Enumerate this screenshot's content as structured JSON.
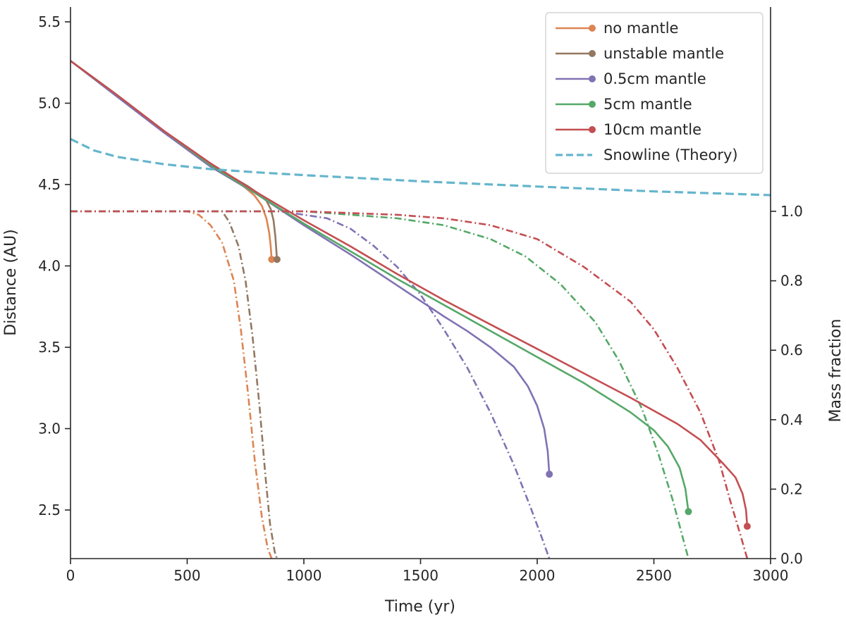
{
  "chart_data": {
    "type": "line",
    "xlabel": "Time (yr)",
    "ylabel": "Distance (AU)",
    "y2label": "Mass fraction",
    "xlim": [
      0,
      3000
    ],
    "ylim": [
      2.2,
      5.6
    ],
    "y2lim": [
      0.0,
      1.0
    ],
    "x_ticks": [
      "0",
      "500",
      "1000",
      "1500",
      "2000",
      "2500",
      "3000"
    ],
    "y_ticks": [
      "2.5",
      "3.0",
      "3.5",
      "4.0",
      "4.5",
      "5.0",
      "5.5"
    ],
    "y2_ticks": [
      "0.0",
      "0.2",
      "0.4",
      "0.6",
      "0.8",
      "1.0"
    ],
    "grid": false,
    "legend_position": "top-right",
    "series": [
      {
        "name": "no mantle",
        "color": "#dd8452",
        "distance": [
          [
            0,
            5.26
          ],
          [
            200,
            5.05
          ],
          [
            400,
            4.83
          ],
          [
            550,
            4.67
          ],
          [
            650,
            4.57
          ],
          [
            700,
            4.53
          ],
          [
            750,
            4.48
          ],
          [
            790,
            4.43
          ],
          [
            820,
            4.37
          ],
          [
            840,
            4.29
          ],
          [
            852,
            4.2
          ],
          [
            858,
            4.12
          ],
          [
            862,
            4.04
          ]
        ],
        "mass_fraction": [
          [
            0,
            1.0
          ],
          [
            500,
            1.0
          ],
          [
            550,
            0.99
          ],
          [
            600,
            0.96
          ],
          [
            650,
            0.91
          ],
          [
            700,
            0.8
          ],
          [
            730,
            0.66
          ],
          [
            760,
            0.48
          ],
          [
            790,
            0.28
          ],
          [
            820,
            0.12
          ],
          [
            845,
            0.03
          ],
          [
            862,
            0.0
          ]
        ]
      },
      {
        "name": "unstable mantle",
        "color": "#937860",
        "distance": [
          [
            0,
            5.26
          ],
          [
            200,
            5.05
          ],
          [
            400,
            4.83
          ],
          [
            600,
            4.63
          ],
          [
            700,
            4.54
          ],
          [
            760,
            4.49
          ],
          [
            810,
            4.44
          ],
          [
            840,
            4.4
          ],
          [
            858,
            4.35
          ],
          [
            870,
            4.28
          ],
          [
            878,
            4.18
          ],
          [
            882,
            4.1
          ],
          [
            885,
            4.04
          ]
        ],
        "mass_fraction": [
          [
            0,
            1.0
          ],
          [
            650,
            1.0
          ],
          [
            680,
            0.97
          ],
          [
            720,
            0.9
          ],
          [
            750,
            0.8
          ],
          [
            780,
            0.64
          ],
          [
            810,
            0.44
          ],
          [
            835,
            0.24
          ],
          [
            855,
            0.1
          ],
          [
            875,
            0.02
          ],
          [
            885,
            0.0
          ]
        ]
      },
      {
        "name": "0.5cm mantle",
        "color": "#8172b3",
        "distance": [
          [
            0,
            5.26
          ],
          [
            200,
            5.04
          ],
          [
            400,
            4.82
          ],
          [
            600,
            4.61
          ],
          [
            800,
            4.44
          ],
          [
            1000,
            4.25
          ],
          [
            1200,
            4.07
          ],
          [
            1400,
            3.88
          ],
          [
            1600,
            3.69
          ],
          [
            1700,
            3.6
          ],
          [
            1800,
            3.5
          ],
          [
            1900,
            3.38
          ],
          [
            1960,
            3.26
          ],
          [
            2000,
            3.14
          ],
          [
            2030,
            3.0
          ],
          [
            2045,
            2.86
          ],
          [
            2052,
            2.72
          ]
        ],
        "mass_fraction": [
          [
            0,
            1.0
          ],
          [
            900,
            1.0
          ],
          [
            1000,
            0.99
          ],
          [
            1100,
            0.98
          ],
          [
            1200,
            0.95
          ],
          [
            1300,
            0.9
          ],
          [
            1400,
            0.84
          ],
          [
            1500,
            0.76
          ],
          [
            1600,
            0.66
          ],
          [
            1700,
            0.55
          ],
          [
            1800,
            0.42
          ],
          [
            1900,
            0.27
          ],
          [
            1970,
            0.15
          ],
          [
            2020,
            0.06
          ],
          [
            2052,
            0.0
          ]
        ]
      },
      {
        "name": "5cm mantle",
        "color": "#55a868",
        "distance": [
          [
            0,
            5.26
          ],
          [
            200,
            5.05
          ],
          [
            400,
            4.83
          ],
          [
            600,
            4.62
          ],
          [
            800,
            4.44
          ],
          [
            1000,
            4.26
          ],
          [
            1200,
            4.09
          ],
          [
            1400,
            3.92
          ],
          [
            1600,
            3.76
          ],
          [
            1800,
            3.6
          ],
          [
            2000,
            3.44
          ],
          [
            2200,
            3.28
          ],
          [
            2400,
            3.1
          ],
          [
            2500,
            2.99
          ],
          [
            2560,
            2.89
          ],
          [
            2610,
            2.76
          ],
          [
            2635,
            2.63
          ],
          [
            2648,
            2.49
          ]
        ],
        "mass_fraction": [
          [
            0,
            1.0
          ],
          [
            1000,
            1.0
          ],
          [
            1200,
            0.99
          ],
          [
            1400,
            0.98
          ],
          [
            1600,
            0.96
          ],
          [
            1800,
            0.92
          ],
          [
            1950,
            0.87
          ],
          [
            2100,
            0.79
          ],
          [
            2250,
            0.68
          ],
          [
            2350,
            0.57
          ],
          [
            2450,
            0.43
          ],
          [
            2520,
            0.3
          ],
          [
            2580,
            0.17
          ],
          [
            2620,
            0.07
          ],
          [
            2648,
            0.0
          ]
        ]
      },
      {
        "name": "10cm mantle",
        "color": "#c44e52",
        "distance": [
          [
            0,
            5.26
          ],
          [
            200,
            5.05
          ],
          [
            400,
            4.83
          ],
          [
            600,
            4.63
          ],
          [
            800,
            4.45
          ],
          [
            1000,
            4.28
          ],
          [
            1200,
            4.12
          ],
          [
            1400,
            3.95
          ],
          [
            1600,
            3.79
          ],
          [
            1800,
            3.64
          ],
          [
            2000,
            3.49
          ],
          [
            2200,
            3.34
          ],
          [
            2400,
            3.19
          ],
          [
            2600,
            3.03
          ],
          [
            2700,
            2.93
          ],
          [
            2800,
            2.78
          ],
          [
            2850,
            2.7
          ],
          [
            2880,
            2.6
          ],
          [
            2895,
            2.5
          ],
          [
            2900,
            2.4
          ]
        ],
        "mass_fraction": [
          [
            0,
            1.0
          ],
          [
            1000,
            1.0
          ],
          [
            1400,
            0.99
          ],
          [
            1600,
            0.98
          ],
          [
            1800,
            0.96
          ],
          [
            2000,
            0.92
          ],
          [
            2200,
            0.84
          ],
          [
            2400,
            0.74
          ],
          [
            2500,
            0.66
          ],
          [
            2600,
            0.55
          ],
          [
            2700,
            0.42
          ],
          [
            2780,
            0.28
          ],
          [
            2830,
            0.16
          ],
          [
            2870,
            0.07
          ],
          [
            2900,
            0.0
          ]
        ]
      },
      {
        "name": "Snowline (Theory)",
        "color": "#64b5cd",
        "distance": [
          [
            0,
            4.78
          ],
          [
            100,
            4.71
          ],
          [
            200,
            4.67
          ],
          [
            400,
            4.625
          ],
          [
            600,
            4.595
          ],
          [
            800,
            4.575
          ],
          [
            1000,
            4.558
          ],
          [
            1500,
            4.52
          ],
          [
            2000,
            4.488
          ],
          [
            2500,
            4.458
          ],
          [
            3000,
            4.435
          ]
        ]
      }
    ]
  }
}
